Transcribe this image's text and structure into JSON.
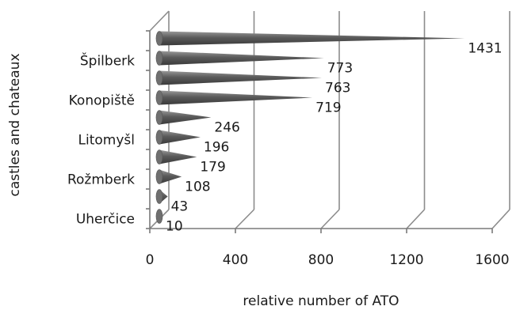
{
  "chart_data": {
    "type": "bar",
    "orientation": "horizontal",
    "style": "3d-cone",
    "xlabel": "relative number of ATO",
    "ylabel": "castles and chateaux",
    "xlim": [
      0,
      1600
    ],
    "x_ticks": [
      "0",
      "400",
      "800",
      "1200",
      "1600"
    ],
    "x_tick_values": [
      0,
      400,
      800,
      1200,
      1600
    ],
    "category_labels_shown": [
      "Špilberk",
      "Konopiště",
      "Litomyšl",
      "Rožmberk",
      "Uherčice"
    ],
    "values_top_to_bottom": [
      1431,
      773,
      763,
      719,
      246,
      196,
      179,
      108,
      43,
      10
    ],
    "value_labels": [
      "1431",
      "773",
      "763",
      "719",
      "246",
      "196",
      "179",
      "108",
      "43",
      "10"
    ],
    "grid": true,
    "bar_color": "#6b6b6b",
    "grid_color": "#8c8c8c"
  }
}
